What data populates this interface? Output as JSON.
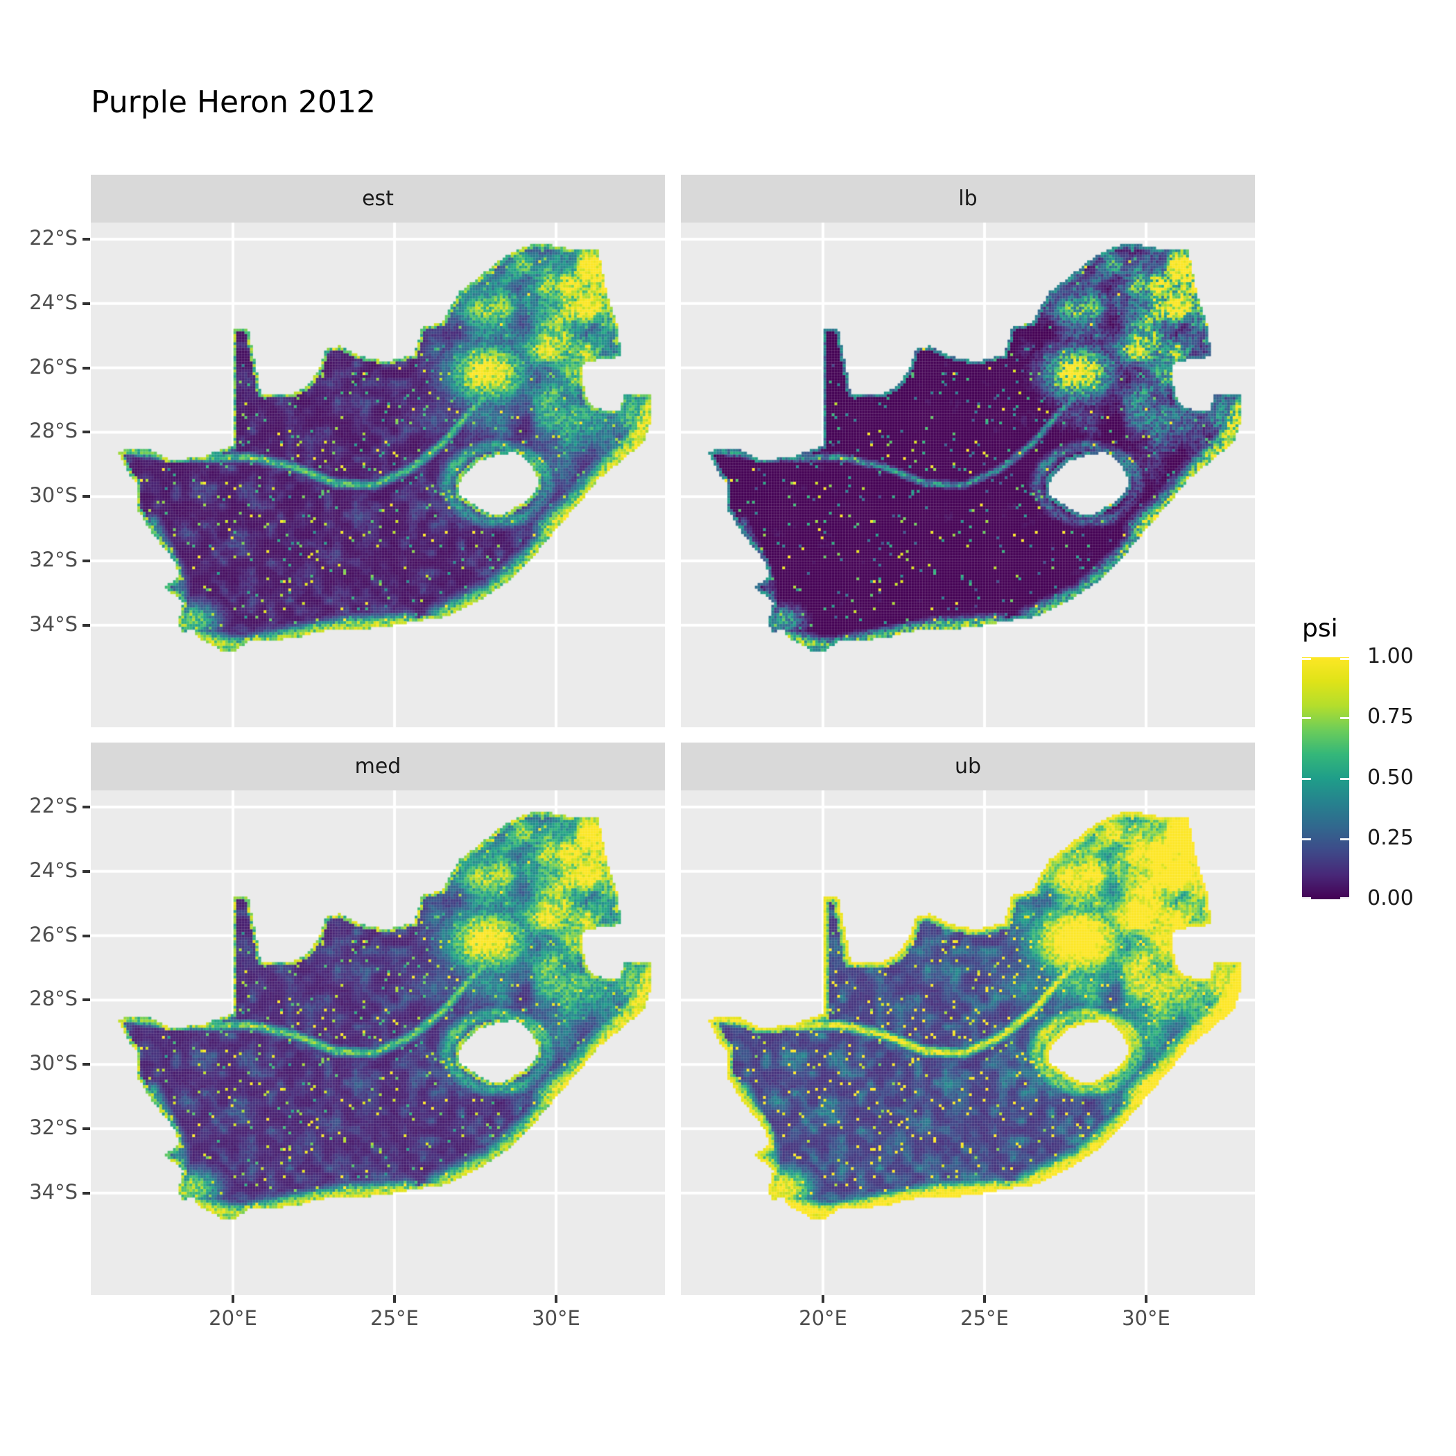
{
  "title": "Purple Heron 2012",
  "legend": {
    "title": "psi",
    "entries": [
      {
        "label": "1.00",
        "value": 1.0
      },
      {
        "label": "0.75",
        "value": 0.75
      },
      {
        "label": "0.50",
        "value": 0.5
      },
      {
        "label": "0.25",
        "value": 0.25
      },
      {
        "label": "0.00",
        "value": 0.0
      }
    ]
  },
  "colors": {
    "panel_bg": "#ebebeb",
    "strip_bg": "#d9d9d9",
    "gridline": "#ffffff",
    "axis_text": "#4d4d4d",
    "tick_mark": "#333333",
    "title_text": "#000000",
    "viridis": [
      "#440154",
      "#482878",
      "#3e4a89",
      "#31688e",
      "#26828e",
      "#1f9e89",
      "#35b779",
      "#6dcd59",
      "#b4de2c",
      "#dfe318",
      "#fde725"
    ]
  },
  "chart_data": {
    "type": "heatmap",
    "title": "Purple Heron 2012",
    "legend_title": "psi",
    "value_range": [
      0.0,
      1.0
    ],
    "facets": [
      {
        "label": "est",
        "row": 0,
        "col": 0,
        "transform": {
          "a": 1.0,
          "gamma": 1.0,
          "b": 0.0
        },
        "rim": {
          "base": 0.46,
          "rand": 0.42
        },
        "rim2": {
          "base": 0.0,
          "rand": 0.0
        }
      },
      {
        "label": "lb",
        "row": 0,
        "col": 1,
        "transform": {
          "a": 1.05,
          "gamma": 1.62,
          "b": -0.05
        },
        "rim": {
          "base": 0.22,
          "rand": 0.3
        },
        "rim2": {
          "base": 0.0,
          "rand": 0.0
        }
      },
      {
        "label": "med",
        "row": 1,
        "col": 0,
        "transform": {
          "a": 1.02,
          "gamma": 0.88,
          "b": 0.02
        },
        "rim": {
          "base": 0.5,
          "rand": 0.45
        },
        "rim2": {
          "base": 0.0,
          "rand": 0.0
        }
      },
      {
        "label": "ub",
        "row": 1,
        "col": 1,
        "transform": {
          "a": 1.3,
          "gamma": 0.75,
          "b": 0.03
        },
        "rim": {
          "base": 0.88,
          "rand": 0.12
        },
        "rim2": {
          "base": 0.55,
          "rand": 0.3
        }
      }
    ],
    "axes": {
      "x": {
        "ticks": [
          {
            "label": "20°E",
            "lon": 20
          },
          {
            "label": "25°E",
            "lon": 25
          },
          {
            "label": "30°E",
            "lon": 30
          }
        ]
      },
      "y": {
        "ticks": [
          {
            "label": "22°S",
            "lat": -22
          },
          {
            "label": "24°S",
            "lat": -24
          },
          {
            "label": "26°S",
            "lat": -26
          },
          {
            "label": "28°S",
            "lat": -28
          },
          {
            "label": "30°S",
            "lat": -30
          },
          {
            "label": "32°S",
            "lat": -32
          },
          {
            "label": "34°S",
            "lat": -34
          }
        ]
      },
      "grid_lats": [
        -22,
        -24,
        -26,
        -28,
        -30,
        -32,
        -34
      ],
      "grid_lons": [
        20,
        25,
        30
      ]
    },
    "geo": {
      "note": "Occupancy probability (psi) raster over South Africa; Lesotho excluded as hole, Eswatini excluded as boundary notch. Raster procedurally approximated from visible spatial pattern.",
      "cell_deg": 0.085,
      "lon_start": 16.36,
      "lat_start": -22.06,
      "n_cols": 199,
      "n_rows": 153,
      "outer_boundary": [
        16.45,
        -28.58,
        17.35,
        -28.5,
        18.1,
        -28.87,
        19.1,
        -28.75,
        19.98,
        -28.42,
        19.98,
        -24.75,
        20.45,
        -24.75,
        20.7,
        -25.9,
        20.85,
        -26.8,
        21.65,
        -26.85,
        22.2,
        -26.65,
        22.65,
        -26.1,
        22.85,
        -25.45,
        23.3,
        -25.3,
        24.0,
        -25.65,
        24.75,
        -25.8,
        25.6,
        -25.6,
        25.85,
        -24.75,
        26.45,
        -24.6,
        27.0,
        -23.65,
        27.6,
        -23.2,
        28.25,
        -22.65,
        29.05,
        -22.2,
        29.65,
        -22.15,
        30.45,
        -22.3,
        31.3,
        -22.35,
        31.55,
        -23.6,
        31.9,
        -24.7,
        32.0,
        -25.65,
        31.4,
        -25.72,
        30.82,
        -25.85,
        30.8,
        -26.3,
        30.95,
        -26.95,
        31.15,
        -27.2,
        31.5,
        -27.32,
        31.97,
        -27.31,
        32.11,
        -26.85,
        32.9,
        -26.85,
        32.93,
        -27.6,
        32.7,
        -28.3,
        32.0,
        -28.9,
        31.3,
        -29.45,
        30.7,
        -30.2,
        30.0,
        -31.0,
        29.25,
        -31.9,
        28.55,
        -32.6,
        27.9,
        -33.05,
        27.0,
        -33.55,
        26.4,
        -33.78,
        25.65,
        -33.85,
        25.0,
        -34.0,
        24.2,
        -34.1,
        23.4,
        -34.1,
        22.6,
        -34.2,
        21.9,
        -34.4,
        21.2,
        -34.45,
        20.5,
        -34.48,
        20.0,
        -34.82,
        19.6,
        -34.78,
        19.35,
        -34.6,
        18.9,
        -34.4,
        18.8,
        -34.1,
        18.45,
        -34.2,
        18.3,
        -33.9,
        18.45,
        -33.3,
        17.9,
        -32.8,
        18.35,
        -32.5,
        18.2,
        -32.0,
        17.85,
        -31.6,
        17.35,
        -30.9,
        17.05,
        -30.4,
        17.05,
        -29.65,
        16.8,
        -29.3
      ],
      "lesotho_hole": [
        26.95,
        -29.6,
        27.35,
        -29.1,
        27.55,
        -28.9,
        28.15,
        -28.72,
        28.7,
        -28.6,
        29.15,
        -28.9,
        29.4,
        -29.3,
        29.45,
        -29.65,
        29.25,
        -29.95,
        28.9,
        -30.25,
        28.4,
        -30.52,
        28.1,
        -30.6,
        27.75,
        -30.45,
        27.4,
        -30.2,
        27.0,
        -29.95
      ]
    },
    "generator": {
      "base": {
        "c": 0.035,
        "fine": 0.16,
        "fine_pow": 2.5
      },
      "spark": {
        "threshold": 0.967,
        "base": 0.5,
        "rand": 0.45
      },
      "northeast_field": {
        "x0": 24.2,
        "xs": 6.0,
        "y0": -31.5,
        "ys": 7.0,
        "pow": 1.15,
        "c": 0.13,
        "p1": 1.05,
        "g1": 1.6,
        "p2": 0.33
      },
      "blobs": [
        {
          "name": "gauteng-hotspot",
          "lon": 27.9,
          "lat": -26.15,
          "sx": 1.25,
          "sy": 0.95,
          "v": 1.02
        },
        {
          "name": "cape-town-hotspot",
          "lon": 18.75,
          "lat": -33.85,
          "sx": 0.8,
          "sy": 0.55,
          "v": 0.68
        }
      ],
      "bands": [
        {
          "name": "kzn-coast",
          "w": 0.5,
          "v": 0.95,
          "pts": [
            29.9,
            -31.1,
            31.0,
            -30.05,
            31.8,
            -29.1,
            32.55,
            -28.35,
            32.9,
            -27.3
          ]
        },
        {
          "name": "wild-coast",
          "w": 0.35,
          "v": 0.7,
          "pts": [
            26.4,
            -33.75,
            28.0,
            -33.0,
            29.3,
            -31.85,
            29.9,
            -31.1
          ]
        },
        {
          "name": "south-coast",
          "w": 0.3,
          "v": 0.8,
          "pts": [
            18.9,
            -34.4,
            20.2,
            -34.7,
            21.9,
            -34.35,
            23.5,
            -34.05,
            25.4,
            -33.95
          ]
        },
        {
          "name": "west-coast",
          "w": 0.25,
          "v": 0.38,
          "pts": [
            17.5,
            -30.8,
            18.25,
            -32.3,
            18.4,
            -33.2
          ]
        },
        {
          "name": "orange-river",
          "w": 0.14,
          "v": 0.62,
          "pts": [
            16.6,
            -28.55,
            17.8,
            -28.72,
            19.2,
            -28.8,
            20.5,
            -28.78,
            21.8,
            -29.05,
            23.2,
            -29.6,
            24.35,
            -29.65
          ]
        },
        {
          "name": "vaal-river",
          "w": 0.14,
          "v": 0.6,
          "pts": [
            24.35,
            -29.65,
            25.5,
            -29.15,
            26.5,
            -28.35,
            27.35,
            -27.35,
            28.0,
            -26.7
          ]
        },
        {
          "name": "limpopo-river",
          "w": 0.12,
          "v": 0.5,
          "pts": [
            27.6,
            -23.2,
            28.25,
            -22.65,
            29.05,
            -22.2,
            30.45,
            -22.3,
            31.3,
            -22.35
          ]
        }
      ],
      "lesotho_rim": {
        "cx": 28.2,
        "cy": -29.6,
        "rx": 1.35,
        "ry": 1.05,
        "r": 1.12,
        "w": 0.22,
        "v": 0.7
      },
      "jitter": {
        "base": 0.72,
        "rand": 0.55
      }
    }
  }
}
